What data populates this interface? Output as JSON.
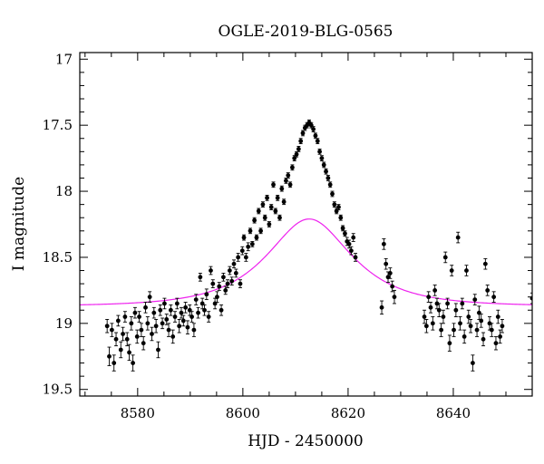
{
  "chart_data": {
    "type": "scatter",
    "title": "OGLE-2019-BLG-0565",
    "xlabel": "HJD - 2450000",
    "ylabel": "I magnitude",
    "xlim": [
      8569,
      8655
    ],
    "ylim": [
      19.55,
      16.95
    ],
    "y_inverted": true,
    "grid": false,
    "x_major_ticks": [
      8580,
      8600,
      8620,
      8640
    ],
    "x_minor_step": 5,
    "y_major_ticks": [
      17,
      17.5,
      18,
      18.5,
      19,
      19.5
    ],
    "y_minor_step": 0.1,
    "colors": {
      "data": "#000000",
      "model": "#ee22ee"
    },
    "model": {
      "description": "point-lens fit",
      "t0": 8612.6,
      "u0": 0.62,
      "tE": 12.5,
      "baseline": 18.87
    },
    "series": [
      {
        "points": [
          [
            8574.2,
            19.02,
            0.05
          ],
          [
            8574.6,
            19.25,
            0.07
          ],
          [
            8575.1,
            19.05,
            0.05
          ],
          [
            8575.5,
            19.3,
            0.06
          ],
          [
            8575.9,
            19.12,
            0.05
          ],
          [
            8576.3,
            18.98,
            0.04
          ],
          [
            8576.8,
            19.2,
            0.06
          ],
          [
            8577.2,
            19.08,
            0.05
          ],
          [
            8577.6,
            18.95,
            0.04
          ],
          [
            8578.0,
            19.12,
            0.05
          ],
          [
            8578.4,
            19.22,
            0.06
          ],
          [
            8578.8,
            19.0,
            0.05
          ],
          [
            8579.1,
            19.3,
            0.06
          ],
          [
            8579.5,
            18.92,
            0.04
          ],
          [
            8579.9,
            19.1,
            0.05
          ],
          [
            8580.3,
            18.95,
            0.04
          ],
          [
            8580.7,
            19.05,
            0.05
          ],
          [
            8581.1,
            19.15,
            0.05
          ],
          [
            8581.5,
            18.88,
            0.04
          ],
          [
            8581.9,
            19.0,
            0.05
          ],
          [
            8582.3,
            18.8,
            0.04
          ],
          [
            8582.7,
            19.08,
            0.05
          ],
          [
            8583.1,
            18.92,
            0.04
          ],
          [
            8583.5,
            19.02,
            0.05
          ],
          [
            8583.9,
            19.2,
            0.06
          ],
          [
            8584.3,
            18.9,
            0.04
          ],
          [
            8584.7,
            19.0,
            0.04
          ],
          [
            8585.1,
            18.85,
            0.04
          ],
          [
            8585.5,
            18.97,
            0.04
          ],
          [
            8585.9,
            19.05,
            0.05
          ],
          [
            8586.3,
            18.9,
            0.04
          ],
          [
            8586.7,
            19.1,
            0.05
          ],
          [
            8587.1,
            18.95,
            0.04
          ],
          [
            8587.5,
            18.85,
            0.04
          ],
          [
            8587.9,
            19.02,
            0.05
          ],
          [
            8588.3,
            18.92,
            0.04
          ],
          [
            8588.7,
            18.98,
            0.04
          ],
          [
            8589.1,
            18.88,
            0.04
          ],
          [
            8589.5,
            19.03,
            0.05
          ],
          [
            8589.9,
            18.9,
            0.04
          ],
          [
            8590.3,
            18.95,
            0.04
          ],
          [
            8590.7,
            19.05,
            0.05
          ],
          [
            8591.1,
            18.82,
            0.04
          ],
          [
            8591.5,
            18.92,
            0.04
          ],
          [
            8591.9,
            18.65,
            0.03
          ],
          [
            8592.3,
            18.85,
            0.04
          ],
          [
            8592.7,
            18.9,
            0.04
          ],
          [
            8593.1,
            18.78,
            0.04
          ],
          [
            8593.5,
            18.95,
            0.04
          ],
          [
            8593.9,
            18.6,
            0.03
          ],
          [
            8594.3,
            18.7,
            0.03
          ],
          [
            8594.7,
            18.85,
            0.04
          ],
          [
            8595.1,
            18.8,
            0.04
          ],
          [
            8595.5,
            18.72,
            0.03
          ],
          [
            8595.9,
            18.9,
            0.04
          ],
          [
            8596.3,
            18.65,
            0.03
          ],
          [
            8596.7,
            18.75,
            0.03
          ],
          [
            8597.1,
            18.7,
            0.03
          ],
          [
            8597.5,
            18.6,
            0.03
          ],
          [
            8597.9,
            18.68,
            0.03
          ],
          [
            8598.3,
            18.55,
            0.03
          ],
          [
            8598.7,
            18.62,
            0.03
          ],
          [
            8599.1,
            18.5,
            0.03
          ],
          [
            8599.5,
            18.7,
            0.03
          ],
          [
            8599.9,
            18.45,
            0.03
          ],
          [
            8600.2,
            18.35,
            0.02
          ],
          [
            8600.6,
            18.5,
            0.03
          ],
          [
            8601.0,
            18.42,
            0.03
          ],
          [
            8601.4,
            18.3,
            0.02
          ],
          [
            8601.8,
            18.4,
            0.02
          ],
          [
            8602.2,
            18.22,
            0.02
          ],
          [
            8602.6,
            18.35,
            0.02
          ],
          [
            8603.0,
            18.15,
            0.02
          ],
          [
            8603.4,
            18.3,
            0.02
          ],
          [
            8603.8,
            18.1,
            0.02
          ],
          [
            8604.2,
            18.2,
            0.02
          ],
          [
            8604.6,
            18.05,
            0.02
          ],
          [
            8605.0,
            18.25,
            0.02
          ],
          [
            8605.4,
            18.12,
            0.02
          ],
          [
            8605.8,
            17.95,
            0.02
          ],
          [
            8606.2,
            18.15,
            0.02
          ],
          [
            8606.6,
            18.05,
            0.02
          ],
          [
            8607.0,
            18.2,
            0.02
          ],
          [
            8607.4,
            17.98,
            0.02
          ],
          [
            8607.8,
            18.08,
            0.02
          ],
          [
            8608.2,
            17.92,
            0.02
          ],
          [
            8608.6,
            17.88,
            0.02
          ],
          [
            8609.0,
            17.95,
            0.02
          ],
          [
            8609.4,
            17.82,
            0.02
          ],
          [
            8609.8,
            17.75,
            0.02
          ],
          [
            8610.2,
            17.72,
            0.02
          ],
          [
            8610.6,
            17.68,
            0.02
          ],
          [
            8611.0,
            17.62,
            0.02
          ],
          [
            8611.4,
            17.56,
            0.02
          ],
          [
            8611.8,
            17.52,
            0.02
          ],
          [
            8612.2,
            17.5,
            0.02
          ],
          [
            8612.6,
            17.48,
            0.02
          ],
          [
            8613.0,
            17.5,
            0.02
          ],
          [
            8613.4,
            17.53,
            0.02
          ],
          [
            8613.8,
            17.58,
            0.02
          ],
          [
            8614.2,
            17.62,
            0.02
          ],
          [
            8614.6,
            17.7,
            0.02
          ],
          [
            8615.0,
            17.75,
            0.02
          ],
          [
            8615.4,
            17.8,
            0.02
          ],
          [
            8615.8,
            17.85,
            0.02
          ],
          [
            8616.2,
            17.9,
            0.02
          ],
          [
            8616.6,
            17.95,
            0.02
          ],
          [
            8617.0,
            18.02,
            0.02
          ],
          [
            8617.4,
            18.1,
            0.02
          ],
          [
            8617.8,
            18.15,
            0.02
          ],
          [
            8618.2,
            18.12,
            0.02
          ],
          [
            8618.6,
            18.2,
            0.02
          ],
          [
            8619.0,
            18.28,
            0.02
          ],
          [
            8619.4,
            18.32,
            0.02
          ],
          [
            8619.8,
            18.38,
            0.03
          ],
          [
            8620.2,
            18.4,
            0.03
          ],
          [
            8620.6,
            18.45,
            0.03
          ],
          [
            8621.0,
            18.35,
            0.03
          ],
          [
            8621.4,
            18.5,
            0.03
          ],
          [
            8626.4,
            18.88,
            0.05
          ],
          [
            8626.8,
            18.4,
            0.04
          ],
          [
            8627.2,
            18.55,
            0.04
          ],
          [
            8627.6,
            18.65,
            0.04
          ],
          [
            8628.0,
            18.62,
            0.04
          ],
          [
            8628.4,
            18.72,
            0.04
          ],
          [
            8628.8,
            18.8,
            0.05
          ],
          [
            8634.5,
            18.95,
            0.05
          ],
          [
            8634.9,
            19.02,
            0.05
          ],
          [
            8635.3,
            18.8,
            0.04
          ],
          [
            8635.7,
            18.88,
            0.04
          ],
          [
            8636.1,
            19.0,
            0.05
          ],
          [
            8636.5,
            18.75,
            0.04
          ],
          [
            8636.9,
            18.85,
            0.04
          ],
          [
            8637.3,
            18.9,
            0.05
          ],
          [
            8637.7,
            19.05,
            0.05
          ],
          [
            8638.1,
            18.95,
            0.05
          ],
          [
            8638.5,
            18.5,
            0.04
          ],
          [
            8638.9,
            18.85,
            0.04
          ],
          [
            8639.3,
            19.15,
            0.06
          ],
          [
            8639.7,
            18.6,
            0.04
          ],
          [
            8640.1,
            19.05,
            0.05
          ],
          [
            8640.5,
            18.9,
            0.05
          ],
          [
            8640.9,
            18.35,
            0.04
          ],
          [
            8641.3,
            19.0,
            0.05
          ],
          [
            8641.7,
            18.85,
            0.04
          ],
          [
            8642.1,
            19.1,
            0.05
          ],
          [
            8642.5,
            18.6,
            0.04
          ],
          [
            8642.9,
            18.95,
            0.05
          ],
          [
            8643.3,
            19.02,
            0.05
          ],
          [
            8643.7,
            19.3,
            0.06
          ],
          [
            8644.1,
            18.82,
            0.04
          ],
          [
            8644.5,
            19.05,
            0.05
          ],
          [
            8644.9,
            18.92,
            0.05
          ],
          [
            8645.3,
            18.98,
            0.05
          ],
          [
            8645.7,
            19.12,
            0.05
          ],
          [
            8646.1,
            18.55,
            0.04
          ],
          [
            8646.5,
            18.75,
            0.04
          ],
          [
            8646.9,
            19.0,
            0.05
          ],
          [
            8647.3,
            19.05,
            0.05
          ],
          [
            8647.7,
            18.8,
            0.04
          ],
          [
            8648.1,
            19.15,
            0.05
          ],
          [
            8648.5,
            18.95,
            0.05
          ],
          [
            8648.9,
            19.1,
            0.05
          ],
          [
            8649.3,
            19.02,
            0.05
          ],
          [
            8655.0,
            18.81,
            0.04
          ]
        ]
      }
    ]
  }
}
